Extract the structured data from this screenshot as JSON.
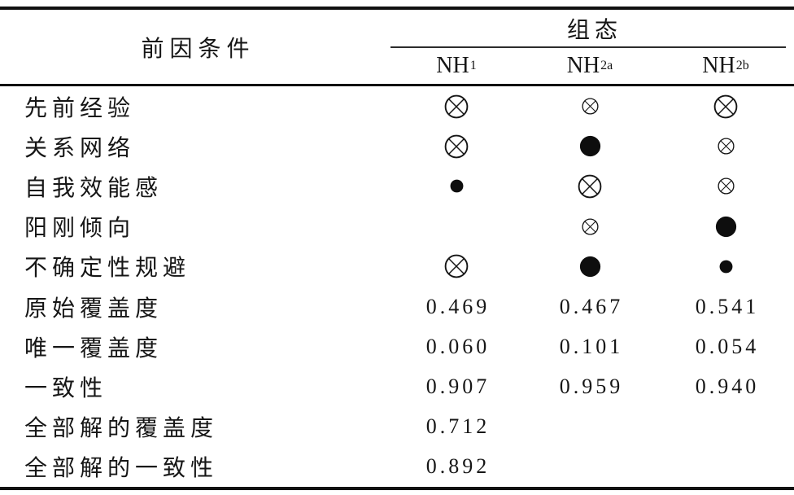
{
  "page": {
    "background": "#ffffff",
    "text_color": "#161616",
    "rule_color": "#101010"
  },
  "table": {
    "header": {
      "antecedent": "前因条件",
      "group": "组态",
      "configurations": [
        {
          "base": "NH",
          "sub": "1"
        },
        {
          "base": "NH",
          "sub": "2a"
        },
        {
          "base": "NH",
          "sub": "2b"
        }
      ]
    },
    "symbol_glyphs": {
      "cross-large": "⊗",
      "cross-small": "⊗",
      "dot-large": "●",
      "dot-small": "●"
    },
    "rows": [
      {
        "label": "先前经验",
        "cells": [
          {
            "symbol": "cross-large"
          },
          {
            "symbol": "cross-small"
          },
          {
            "symbol": "cross-large"
          }
        ]
      },
      {
        "label": "关系网络",
        "cells": [
          {
            "symbol": "cross-large"
          },
          {
            "symbol": "dot-large"
          },
          {
            "symbol": "cross-small"
          }
        ]
      },
      {
        "label": "自我效能感",
        "cells": [
          {
            "symbol": "dot-small"
          },
          {
            "symbol": "cross-large"
          },
          {
            "symbol": "cross-small"
          }
        ]
      },
      {
        "label": "阳刚倾向",
        "cells": [
          {
            "symbol": "none"
          },
          {
            "symbol": "cross-small"
          },
          {
            "symbol": "dot-large"
          }
        ]
      },
      {
        "label": "不确定性规避",
        "cells": [
          {
            "symbol": "cross-large"
          },
          {
            "symbol": "dot-large"
          },
          {
            "symbol": "dot-small"
          }
        ]
      },
      {
        "label": "原始覆盖度",
        "cells": [
          {
            "text": "0.469"
          },
          {
            "text": "0.467"
          },
          {
            "text": "0.541"
          }
        ]
      },
      {
        "label": "唯一覆盖度",
        "cells": [
          {
            "text": "0.060"
          },
          {
            "text": "0.101"
          },
          {
            "text": "0.054"
          }
        ]
      },
      {
        "label": "一致性",
        "cells": [
          {
            "text": "0.907"
          },
          {
            "text": "0.959"
          },
          {
            "text": "0.940"
          }
        ]
      },
      {
        "label": "全部解的覆盖度",
        "cells": [
          {
            "text": "0.712"
          },
          {
            "text": ""
          },
          {
            "text": ""
          }
        ]
      },
      {
        "label": "全部解的一致性",
        "cells": [
          {
            "text": "0.892"
          },
          {
            "text": ""
          },
          {
            "text": ""
          }
        ]
      }
    ]
  },
  "chart_data": {
    "type": "table",
    "columns": [
      "前因条件",
      "NH1",
      "NH2a",
      "NH2b"
    ],
    "rows": [
      [
        "先前经验",
        "⊗大",
        "⊗小",
        "⊗大"
      ],
      [
        "关系网络",
        "⊗大",
        "●大",
        "⊗小"
      ],
      [
        "自我效能感",
        "●小",
        "⊗大",
        "⊗小"
      ],
      [
        "阳刚倾向",
        "",
        "⊗小",
        "●大"
      ],
      [
        "不确定性规避",
        "⊗大",
        "●大",
        "●小"
      ],
      [
        "原始覆盖度",
        0.469,
        0.467,
        0.541
      ],
      [
        "唯一覆盖度",
        0.06,
        0.101,
        0.054
      ],
      [
        "一致性",
        0.907,
        0.959,
        0.94
      ],
      [
        "全部解的覆盖度",
        0.712,
        null,
        null
      ],
      [
        "全部解的一致性",
        0.892,
        null,
        null
      ]
    ]
  }
}
